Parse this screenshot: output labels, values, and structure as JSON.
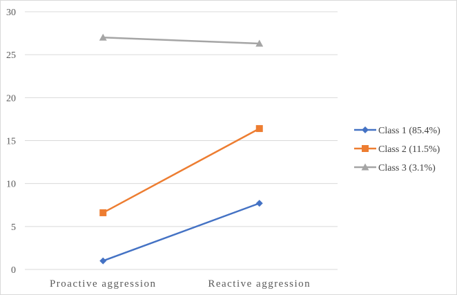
{
  "chart_data": {
    "type": "line",
    "title": "",
    "xlabel": "",
    "ylabel": "",
    "categories": [
      "Proactive aggression",
      "Reactive aggression"
    ],
    "ylim": [
      0,
      30
    ],
    "yticks": [
      0,
      5,
      10,
      15,
      20,
      25,
      30
    ],
    "grid": true,
    "legend_position": "right",
    "series": [
      {
        "name": "Class 1 (85.4%)",
        "values": [
          1.0,
          7.7
        ],
        "color": "#4472C4",
        "marker": "diamond"
      },
      {
        "name": "Class 2 (11.5%)",
        "values": [
          6.6,
          16.4
        ],
        "color": "#ED7D31",
        "marker": "square"
      },
      {
        "name": "Class 3 (3.1%)",
        "values": [
          27.0,
          26.3
        ],
        "color": "#A5A5A5",
        "marker": "triangle"
      }
    ]
  }
}
